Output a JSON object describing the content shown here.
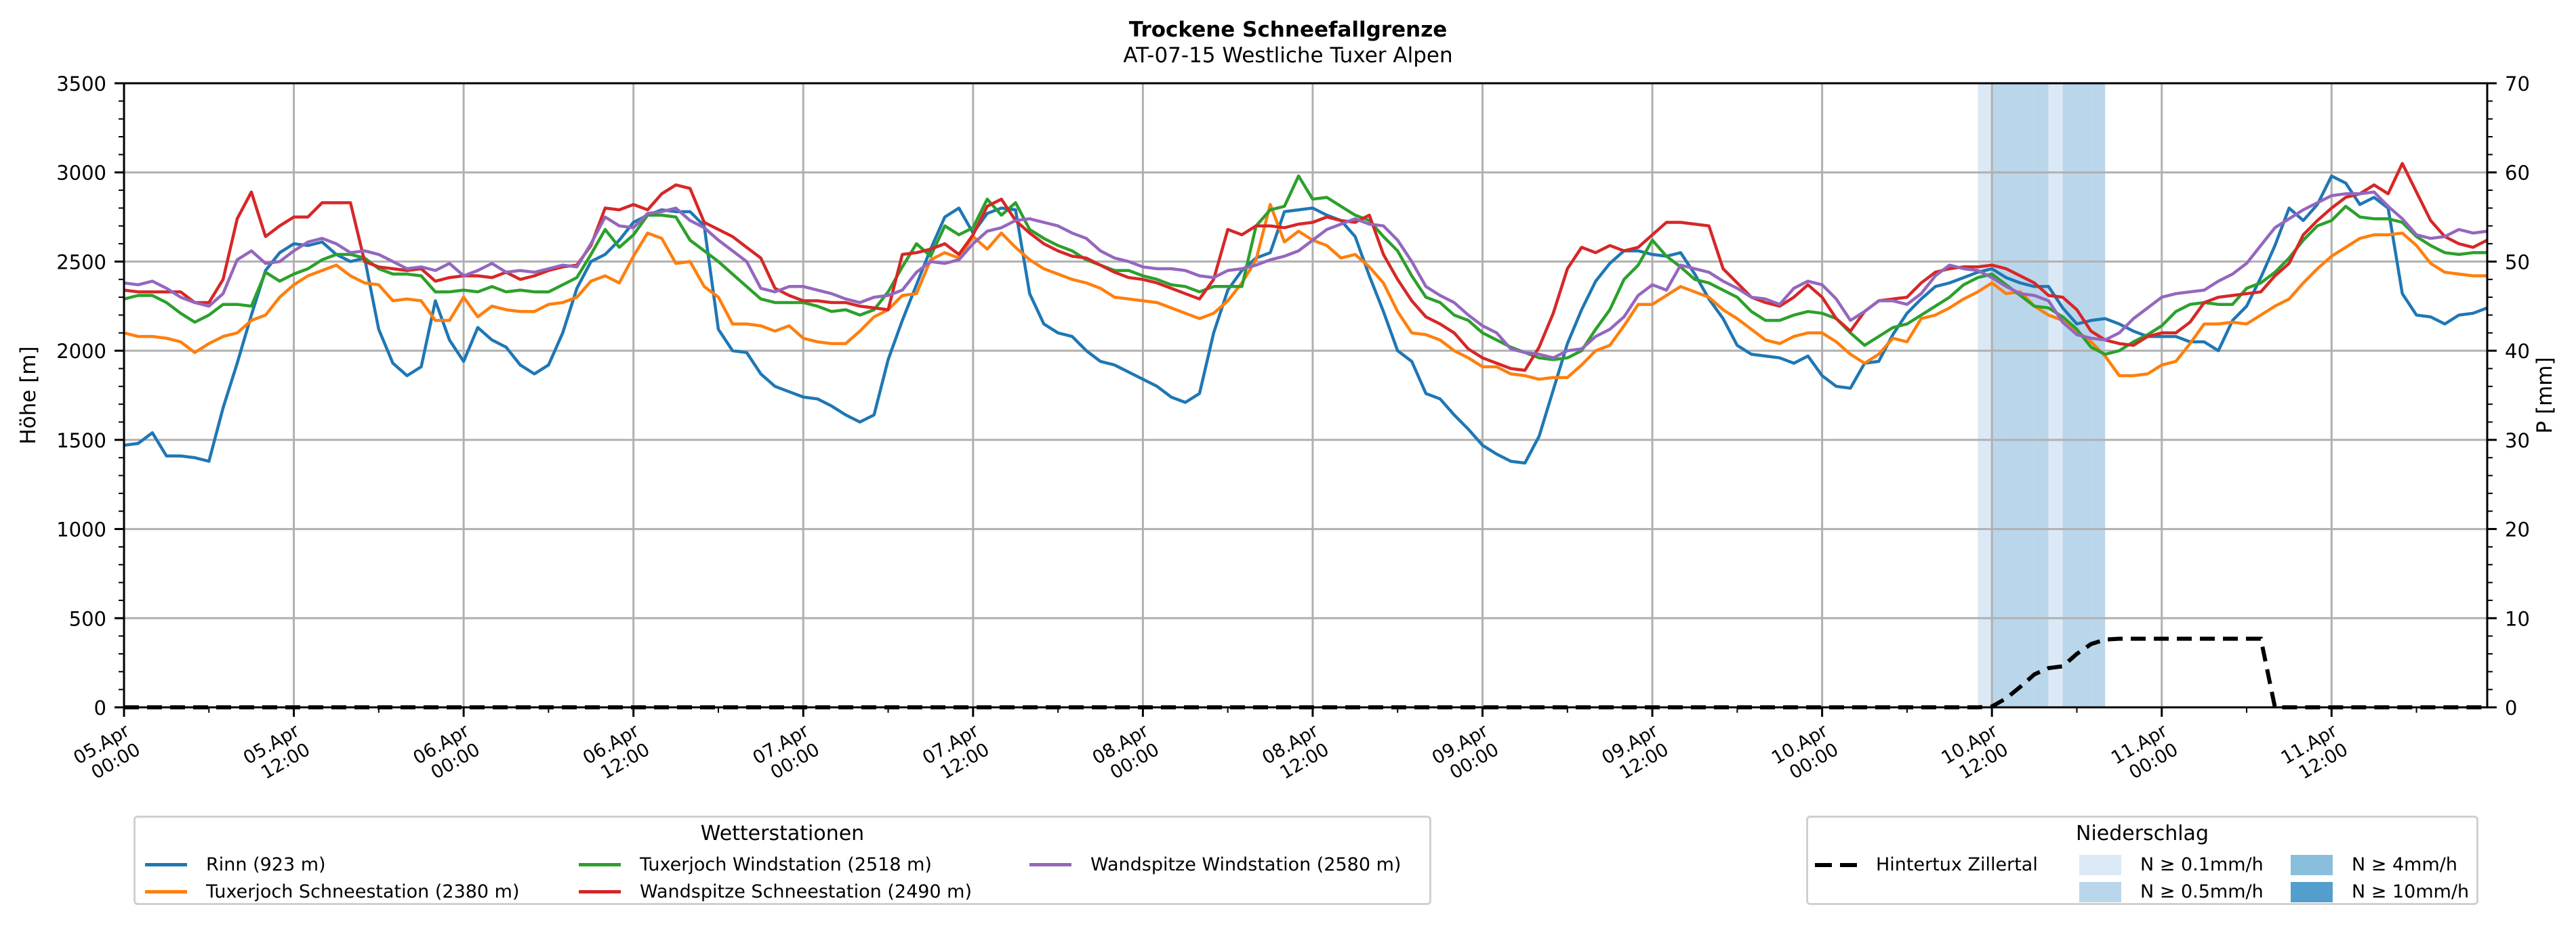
{
  "chart_data": {
    "type": "line",
    "title": "Trockene Schneefallgrenze",
    "subtitle": "AT-07-15 Westliche Tuxer Alpen",
    "ylabel": "Höhe [m]",
    "ylabel_right": "P [mm]",
    "ylim": [
      0,
      3500
    ],
    "ylim_right": [
      0,
      70
    ],
    "yticks": [
      "0",
      "500",
      "1000",
      "1500",
      "2000",
      "2500",
      "3000",
      "3500"
    ],
    "yticks_right": [
      "0",
      "10",
      "20",
      "30",
      "40",
      "50",
      "60",
      "70"
    ],
    "x_start": "05.Apr 00:00",
    "x_step_hours": 1,
    "x_hours_total": 167,
    "xticks": [
      {
        "hour": 0,
        "label": [
          "05.Apr",
          "00:00"
        ]
      },
      {
        "hour": 12,
        "label": [
          "05.Apr",
          "12:00"
        ]
      },
      {
        "hour": 24,
        "label": [
          "06.Apr",
          "00:00"
        ]
      },
      {
        "hour": 36,
        "label": [
          "06.Apr",
          "12:00"
        ]
      },
      {
        "hour": 48,
        "label": [
          "07.Apr",
          "00:00"
        ]
      },
      {
        "hour": 60,
        "label": [
          "07.Apr",
          "12:00"
        ]
      },
      {
        "hour": 72,
        "label": [
          "08.Apr",
          "00:00"
        ]
      },
      {
        "hour": 84,
        "label": [
          "08.Apr",
          "12:00"
        ]
      },
      {
        "hour": 96,
        "label": [
          "09.Apr",
          "00:00"
        ]
      },
      {
        "hour": 108,
        "label": [
          "09.Apr",
          "12:00"
        ]
      },
      {
        "hour": 120,
        "label": [
          "10.Apr",
          "00:00"
        ]
      },
      {
        "hour": 132,
        "label": [
          "10.Apr",
          "12:00"
        ]
      },
      {
        "hour": 144,
        "label": [
          "11.Apr",
          "00:00"
        ]
      },
      {
        "hour": 156,
        "label": [
          "11.Apr",
          "12:00"
        ]
      }
    ],
    "grid": true,
    "series": [
      {
        "name": "Rinn (923 m)",
        "color": "#1f77b4",
        "values": [
          1470,
          1480,
          1540,
          1410,
          1410,
          1400,
          1380,
          1680,
          1930,
          2200,
          2450,
          2550,
          2600,
          2590,
          2610,
          2540,
          2500,
          2520,
          2120,
          1930,
          1860,
          1910,
          2280,
          2060,
          1940,
          2130,
          2060,
          2020,
          1920,
          1870,
          1920,
          2100,
          2350,
          2500,
          2540,
          2620,
          2720,
          2760,
          2790,
          2780,
          2780,
          2700,
          2120,
          2000,
          1990,
          1870,
          1800,
          1770,
          1740,
          1730,
          1690,
          1640,
          1600,
          1640,
          1950,
          2170,
          2370,
          2570,
          2750,
          2800,
          2660,
          2770,
          2800,
          2790,
          2320,
          2150,
          2100,
          2080,
          2000,
          1940,
          1920,
          1880,
          1840,
          1800,
          1740,
          1710,
          1760,
          2100,
          2340,
          2450,
          2520,
          2550,
          2780,
          2790,
          2800,
          2760,
          2730,
          2640,
          2420,
          2220,
          2000,
          1940,
          1760,
          1730,
          1640,
          1560,
          1470,
          1420,
          1380,
          1370,
          1520,
          1780,
          2040,
          2230,
          2390,
          2490,
          2560,
          2560,
          2540,
          2530,
          2550,
          2430,
          2290,
          2180,
          2030,
          1980,
          1970,
          1960,
          1930,
          1970,
          1860,
          1800,
          1790,
          1930,
          1940,
          2090,
          2210,
          2290,
          2360,
          2380,
          2410,
          2440,
          2460,
          2410,
          2380,
          2360,
          2360,
          2240,
          2150,
          2170,
          2180,
          2150,
          2110,
          2080,
          2080,
          2080,
          2050,
          2050,
          2000,
          2170,
          2250,
          2410,
          2590,
          2800,
          2730,
          2820,
          2980,
          2940,
          2820,
          2860,
          2800,
          2320,
          2200,
          2190,
          2150,
          2200,
          2210,
          2240
        ]
      },
      {
        "name": "Tuxerjoch Schneestation (2380 m)",
        "color": "#ff7f0e",
        "values": [
          2100,
          2080,
          2080,
          2070,
          2050,
          1990,
          2040,
          2080,
          2100,
          2170,
          2200,
          2300,
          2370,
          2420,
          2450,
          2480,
          2420,
          2380,
          2370,
          2280,
          2290,
          2280,
          2170,
          2170,
          2300,
          2190,
          2250,
          2230,
          2220,
          2220,
          2260,
          2270,
          2300,
          2390,
          2420,
          2380,
          2530,
          2660,
          2630,
          2490,
          2500,
          2360,
          2300,
          2150,
          2150,
          2140,
          2110,
          2140,
          2070,
          2050,
          2040,
          2040,
          2110,
          2190,
          2230,
          2310,
          2320,
          2510,
          2550,
          2520,
          2640,
          2570,
          2660,
          2580,
          2510,
          2460,
          2430,
          2400,
          2380,
          2350,
          2300,
          2290,
          2280,
          2270,
          2240,
          2210,
          2180,
          2210,
          2280,
          2380,
          2510,
          2820,
          2610,
          2670,
          2620,
          2590,
          2520,
          2540,
          2470,
          2380,
          2220,
          2100,
          2090,
          2060,
          2000,
          1960,
          1910,
          1910,
          1870,
          1860,
          1840,
          1850,
          1850,
          1920,
          2000,
          2030,
          2140,
          2260,
          2260,
          2310,
          2360,
          2330,
          2300,
          2230,
          2180,
          2120,
          2060,
          2040,
          2080,
          2100,
          2100,
          2050,
          1980,
          1930,
          1980,
          2070,
          2050,
          2180,
          2200,
          2240,
          2290,
          2330,
          2380,
          2320,
          2330,
          2250,
          2200,
          2170,
          2110,
          2050,
          1970,
          1860,
          1860,
          1870,
          1920,
          1940,
          2040,
          2150,
          2150,
          2160,
          2150,
          2200,
          2250,
          2290,
          2380,
          2460,
          2530,
          2580,
          2630,
          2650,
          2650,
          2660,
          2590,
          2490,
          2440,
          2430,
          2420,
          2420
        ]
      },
      {
        "name": "Tuxerjoch Windstation (2518 m)",
        "color": "#2ca02c",
        "values": [
          2290,
          2310,
          2310,
          2270,
          2210,
          2160,
          2200,
          2260,
          2260,
          2250,
          2440,
          2390,
          2430,
          2460,
          2510,
          2540,
          2540,
          2520,
          2460,
          2430,
          2430,
          2420,
          2330,
          2330,
          2340,
          2330,
          2360,
          2330,
          2340,
          2330,
          2330,
          2370,
          2410,
          2540,
          2680,
          2580,
          2650,
          2760,
          2760,
          2750,
          2620,
          2560,
          2500,
          2430,
          2360,
          2290,
          2270,
          2270,
          2270,
          2250,
          2220,
          2230,
          2200,
          2230,
          2330,
          2470,
          2600,
          2530,
          2700,
          2650,
          2690,
          2850,
          2760,
          2830,
          2680,
          2630,
          2590,
          2560,
          2510,
          2480,
          2450,
          2450,
          2420,
          2400,
          2370,
          2360,
          2330,
          2360,
          2360,
          2360,
          2700,
          2790,
          2810,
          2980,
          2850,
          2860,
          2810,
          2760,
          2730,
          2640,
          2560,
          2420,
          2300,
          2270,
          2200,
          2170,
          2100,
          2060,
          2020,
          1990,
          1960,
          1950,
          1960,
          2000,
          2120,
          2230,
          2400,
          2480,
          2620,
          2530,
          2470,
          2400,
          2380,
          2340,
          2300,
          2220,
          2170,
          2170,
          2200,
          2220,
          2210,
          2180,
          2100,
          2030,
          2080,
          2130,
          2150,
          2200,
          2250,
          2300,
          2370,
          2410,
          2430,
          2370,
          2310,
          2250,
          2240,
          2190,
          2120,
          2020,
          1980,
          2000,
          2050,
          2090,
          2140,
          2220,
          2260,
          2270,
          2260,
          2260,
          2350,
          2380,
          2440,
          2520,
          2620,
          2700,
          2730,
          2810,
          2750,
          2740,
          2740,
          2720,
          2640,
          2590,
          2550,
          2540,
          2550,
          2550
        ]
      },
      {
        "name": "Wandspitze Schneestation (2490 m)",
        "color": "#d62728",
        "values": [
          2340,
          2330,
          2330,
          2330,
          2330,
          2270,
          2270,
          2400,
          2740,
          2890,
          2640,
          2700,
          2750,
          2750,
          2830,
          2830,
          2830,
          2500,
          2470,
          2460,
          2450,
          2460,
          2390,
          2410,
          2420,
          2420,
          2410,
          2440,
          2400,
          2420,
          2450,
          2470,
          2480,
          2590,
          2800,
          2790,
          2820,
          2790,
          2880,
          2930,
          2910,
          2720,
          2680,
          2640,
          2580,
          2520,
          2350,
          2310,
          2280,
          2280,
          2270,
          2270,
          2250,
          2240,
          2230,
          2540,
          2550,
          2570,
          2600,
          2540,
          2650,
          2810,
          2850,
          2730,
          2660,
          2600,
          2560,
          2530,
          2520,
          2480,
          2440,
          2410,
          2400,
          2380,
          2350,
          2320,
          2290,
          2400,
          2680,
          2650,
          2700,
          2700,
          2690,
          2710,
          2720,
          2750,
          2730,
          2720,
          2760,
          2540,
          2400,
          2280,
          2190,
          2150,
          2100,
          2010,
          1960,
          1930,
          1900,
          1890,
          2020,
          2210,
          2460,
          2580,
          2550,
          2590,
          2560,
          2580,
          2650,
          2720,
          2720,
          2710,
          2700,
          2460,
          2380,
          2300,
          2270,
          2250,
          2300,
          2370,
          2300,
          2180,
          2110,
          2220,
          2280,
          2290,
          2300,
          2380,
          2440,
          2460,
          2470,
          2470,
          2480,
          2460,
          2420,
          2380,
          2310,
          2300,
          2230,
          2110,
          2060,
          2040,
          2030,
          2080,
          2100,
          2100,
          2160,
          2270,
          2300,
          2310,
          2320,
          2330,
          2420,
          2490,
          2650,
          2730,
          2800,
          2860,
          2880,
          2930,
          2880,
          3050,
          2890,
          2730,
          2640,
          2600,
          2580,
          2620
        ]
      },
      {
        "name": "Wandspitze Windstation (2580 m)",
        "color": "#9467bd",
        "values": [
          2380,
          2370,
          2390,
          2350,
          2300,
          2270,
          2250,
          2320,
          2510,
          2560,
          2490,
          2500,
          2560,
          2610,
          2630,
          2600,
          2550,
          2560,
          2540,
          2500,
          2460,
          2470,
          2450,
          2490,
          2420,
          2450,
          2490,
          2440,
          2450,
          2440,
          2460,
          2480,
          2470,
          2600,
          2750,
          2700,
          2690,
          2770,
          2780,
          2800,
          2730,
          2690,
          2620,
          2560,
          2500,
          2350,
          2330,
          2360,
          2360,
          2340,
          2320,
          2290,
          2270,
          2300,
          2310,
          2340,
          2440,
          2500,
          2490,
          2510,
          2600,
          2670,
          2690,
          2730,
          2740,
          2720,
          2700,
          2660,
          2630,
          2560,
          2520,
          2500,
          2470,
          2460,
          2460,
          2450,
          2420,
          2410,
          2450,
          2460,
          2480,
          2510,
          2530,
          2560,
          2620,
          2680,
          2710,
          2740,
          2710,
          2700,
          2620,
          2500,
          2360,
          2310,
          2270,
          2200,
          2140,
          2100,
          2010,
          1990,
          1980,
          1960,
          2000,
          2010,
          2080,
          2120,
          2190,
          2310,
          2370,
          2340,
          2480,
          2460,
          2440,
          2390,
          2350,
          2300,
          2290,
          2260,
          2350,
          2390,
          2370,
          2290,
          2170,
          2220,
          2280,
          2280,
          2260,
          2320,
          2420,
          2480,
          2460,
          2450,
          2410,
          2360,
          2320,
          2310,
          2280,
          2160,
          2090,
          2070,
          2060,
          2100,
          2180,
          2240,
          2300,
          2320,
          2330,
          2340,
          2390,
          2430,
          2490,
          2590,
          2690,
          2740,
          2790,
          2830,
          2870,
          2880,
          2880,
          2890,
          2810,
          2740,
          2650,
          2630,
          2640,
          2680,
          2660,
          2670
        ]
      }
    ],
    "precip_series": {
      "name": "Hintertux Zillertal",
      "axis": "right",
      "style": "dashed",
      "color": "#000000",
      "nonzero": [
        {
          "hour": 132,
          "value": 0.1
        },
        {
          "hour": 133,
          "value": 1.0
        },
        {
          "hour": 134,
          "value": 2.3
        },
        {
          "hour": 135,
          "value": 3.7
        },
        {
          "hour": 136,
          "value": 4.4
        },
        {
          "hour": 137,
          "value": 4.6
        },
        {
          "hour": 138,
          "value": 6.0
        },
        {
          "hour": 139,
          "value": 7.1
        },
        {
          "hour": 140,
          "value": 7.6
        },
        {
          "hour": 141,
          "value": 7.7
        },
        {
          "hour_from": 142,
          "hour_to": 151,
          "value": 7.7
        }
      ]
    },
    "precip_bands": [
      {
        "hour": 131,
        "class": "N ≥ 0.1mm/h"
      },
      {
        "hour": 132,
        "class": "N ≥ 0.5mm/h"
      },
      {
        "hour": 133,
        "class": "N ≥ 0.5mm/h"
      },
      {
        "hour": 134,
        "class": "N ≥ 0.5mm/h"
      },
      {
        "hour": 135,
        "class": "N ≥ 0.5mm/h"
      },
      {
        "hour": 136,
        "class": "N ≥ 0.1mm/h"
      },
      {
        "hour": 137,
        "class": "N ≥ 0.5mm/h"
      },
      {
        "hour": 138,
        "class": "N ≥ 0.5mm/h"
      },
      {
        "hour": 139,
        "class": "N ≥ 0.5mm/h"
      }
    ],
    "legend_stations": {
      "title": "Wetterstationen",
      "placement": "bottom-left"
    },
    "legend_precip": {
      "title": "Niederschlag",
      "placement": "bottom-right",
      "line_label": "Hintertux Zillertal",
      "classes": [
        {
          "label": "N ≥ 0.1mm/h",
          "color": "#dbe9f6"
        },
        {
          "label": "N ≥ 0.5mm/h",
          "color": "#bad6eb"
        },
        {
          "label": "N ≥ 4mm/h",
          "color": "#89bedc"
        },
        {
          "label": "N ≥ 10mm/h",
          "color": "#539ecd"
        }
      ]
    }
  }
}
